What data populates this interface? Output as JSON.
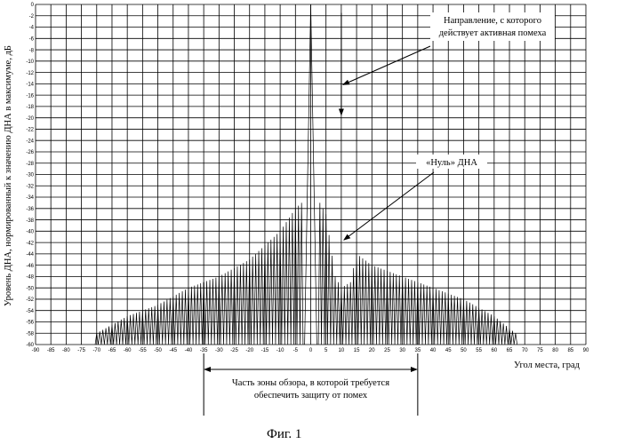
{
  "figure": {
    "caption": "Фиг. 1"
  },
  "chart_data": {
    "type": "line",
    "xlabel": "Угол места, град",
    "ylabel": "Уровень ДНА, нормированный к  значению ДНА в максимуме, дБ",
    "xlim": [
      -90,
      90
    ],
    "ylim": [
      -60,
      0
    ],
    "x_ticks": [
      -90,
      -85,
      -80,
      -75,
      -70,
      -65,
      -60,
      -55,
      -50,
      -45,
      -40,
      -35,
      -30,
      -25,
      -20,
      -15,
      -10,
      -5,
      0,
      5,
      10,
      15,
      20,
      25,
      30,
      35,
      40,
      45,
      50,
      55,
      60,
      65,
      70,
      75,
      80,
      85,
      90
    ],
    "x_tick_labels": [
      "-90",
      "-85",
      "-80",
      "-75",
      "-70",
      "-65",
      "-60",
      "-55",
      "-50",
      "-45",
      "-40",
      "-35",
      "-30",
      "-25",
      "-20",
      "-15",
      "-10",
      "-5",
      "0",
      "5",
      "10",
      "15",
      "20",
      "25",
      "30",
      "35",
      "40",
      "45",
      "50",
      "55",
      "60",
      "65",
      "70",
      "75",
      "80",
      "85",
      "90"
    ],
    "y_ticks": [
      0,
      -2,
      -4,
      -6,
      -8,
      -10,
      -12,
      -14,
      -16,
      -18,
      -20,
      -22,
      -24,
      -26,
      -28,
      -30,
      -32,
      -34,
      -36,
      -38,
      -40,
      -42,
      -44,
      -46,
      -48,
      -50,
      -52,
      -54,
      -56,
      -58,
      -60
    ],
    "y_tick_labels": [
      "0",
      "-2",
      "-4",
      "-6",
      "-8",
      "-10",
      "-12",
      "-14",
      "-16",
      "-18",
      "-20",
      "-22",
      "-24",
      "-26",
      "-28",
      "-30",
      "-32",
      "-34",
      "-36",
      "-38",
      "-40",
      "-42",
      "-44",
      "-46",
      "-48",
      "-50",
      "-52",
      "-54",
      "-56",
      "-58",
      "-60"
    ],
    "grid": true,
    "main_lobe": {
      "x": 0,
      "y": 0,
      "null_left_x": -2,
      "null_right_x": 2
    },
    "sidelobe_envelope": {
      "x": [
        -70,
        -60,
        -50,
        -40,
        -30,
        -20,
        -10,
        -5,
        -3,
        3,
        5,
        8,
        10,
        13,
        15,
        20,
        30,
        40,
        50,
        60,
        67
      ],
      "y": [
        -58,
        -55,
        -53,
        -50,
        -48,
        -45,
        -40,
        -36,
        -35,
        -35,
        -37,
        -48,
        -50,
        -49,
        -44,
        -46,
        -48,
        -50,
        -52,
        -55,
        -58
      ]
    },
    "sidelobe_spacing_deg": 1,
    "boundary_spikes": [
      {
        "x": -35,
        "y": -49
      },
      {
        "x": 35,
        "y": -50
      }
    ],
    "annotations": [
      {
        "lines": [
          "Направление, с которого",
          "действует активная помеха"
        ],
        "arrow_to": {
          "x": 10,
          "y": -14
        },
        "pointer_x": 10
      },
      {
        "lines": [
          "«Нуль»  ДНА"
        ],
        "arrow_to": {
          "x": 10,
          "y": -42
        }
      },
      {
        "lines": [
          "Часть зоны обзора, в которой требуется",
          "обеспечить защиту от помех"
        ],
        "range": [
          -35,
          35
        ]
      }
    ]
  }
}
